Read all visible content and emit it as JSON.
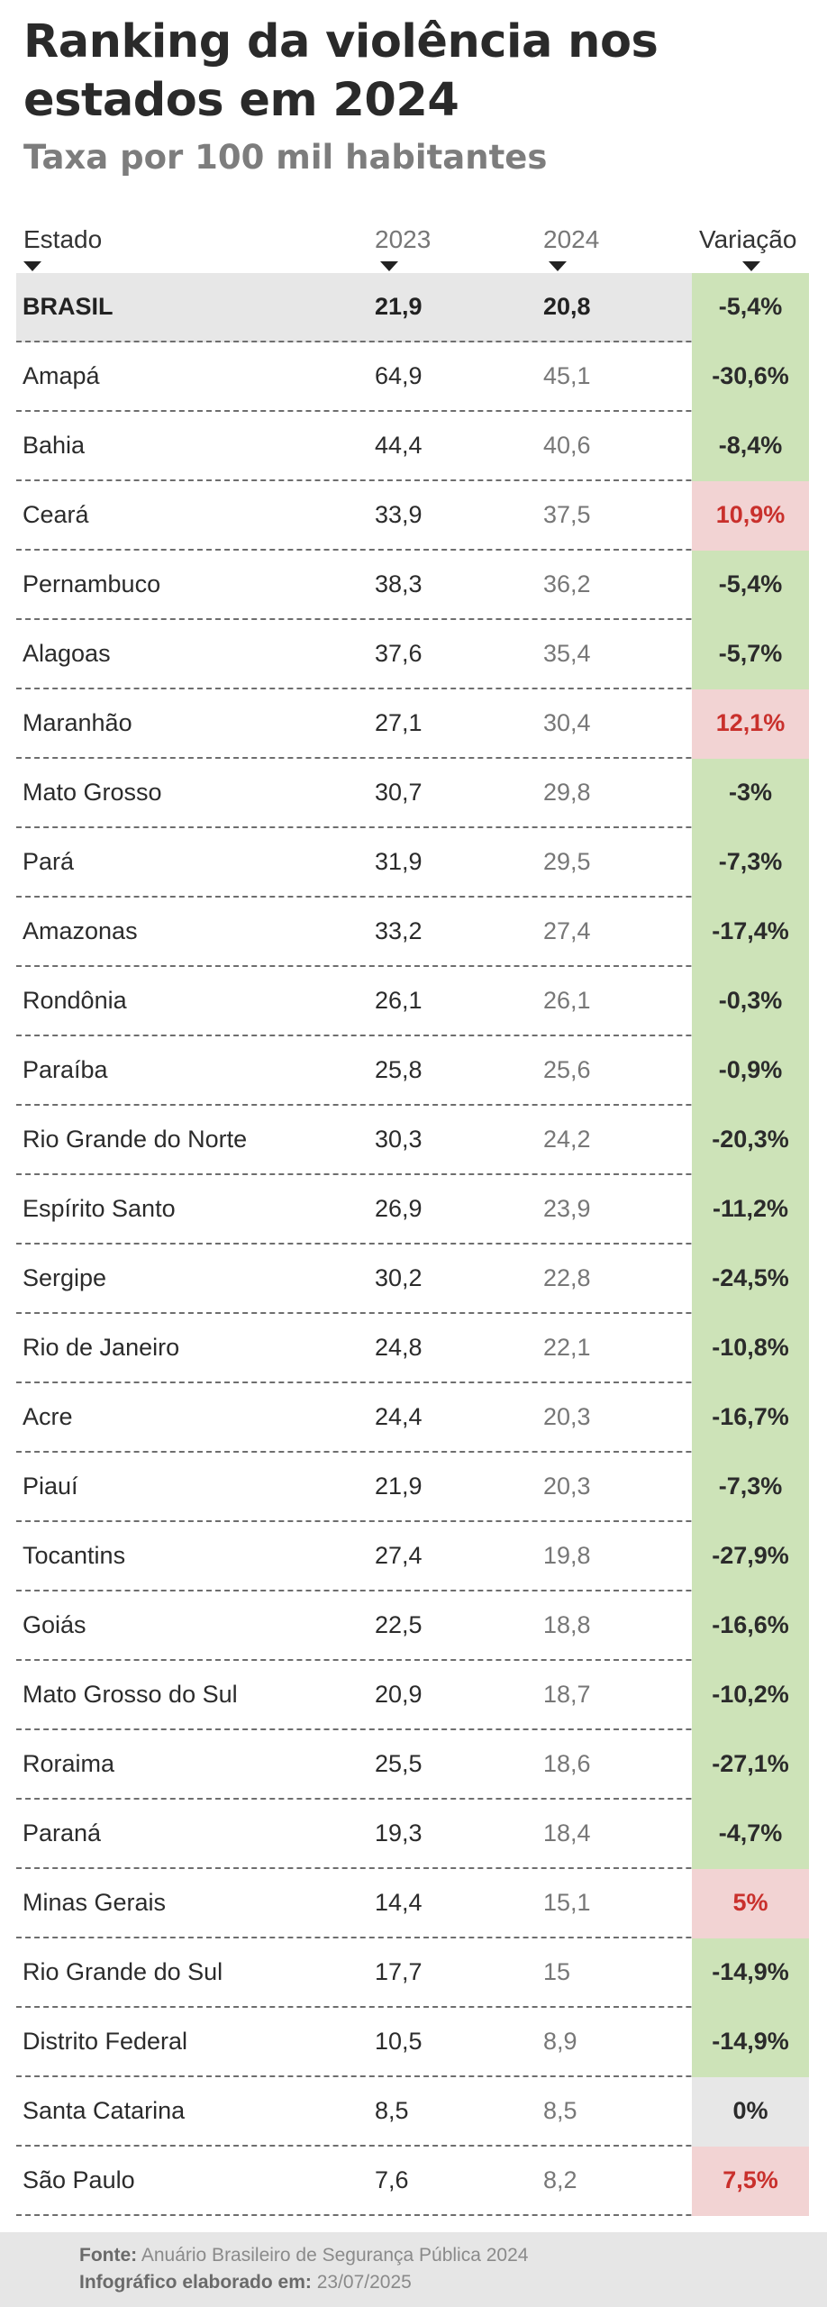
{
  "title": "Ranking da violência nos estados em 2024",
  "subtitle": "Taxa por 100 mil habitantes",
  "columns": [
    "Estado",
    "2023",
    "2024",
    "Variação"
  ],
  "chart_data": {
    "type": "table",
    "title": "Ranking da violência nos estados em 2024",
    "subtitle": "Taxa por 100 mil habitantes",
    "columns": [
      "Estado",
      "2023",
      "2024",
      "Variação"
    ],
    "rows": [
      {
        "estado": "BRASIL",
        "v2023": "21,9",
        "v2024": "20,8",
        "variacao": "-5,4%",
        "status": "neg",
        "highlight": true
      },
      {
        "estado": "Amapá",
        "v2023": "64,9",
        "v2024": "45,1",
        "variacao": "-30,6%",
        "status": "neg"
      },
      {
        "estado": "Bahia",
        "v2023": "44,4",
        "v2024": "40,6",
        "variacao": "-8,4%",
        "status": "neg"
      },
      {
        "estado": "Ceará",
        "v2023": "33,9",
        "v2024": "37,5",
        "variacao": "10,9%",
        "status": "pos"
      },
      {
        "estado": "Pernambuco",
        "v2023": "38,3",
        "v2024": "36,2",
        "variacao": "-5,4%",
        "status": "neg"
      },
      {
        "estado": "Alagoas",
        "v2023": "37,6",
        "v2024": "35,4",
        "variacao": "-5,7%",
        "status": "neg"
      },
      {
        "estado": "Maranhão",
        "v2023": "27,1",
        "v2024": "30,4",
        "variacao": "12,1%",
        "status": "pos"
      },
      {
        "estado": "Mato Grosso",
        "v2023": "30,7",
        "v2024": "29,8",
        "variacao": "-3%",
        "status": "neg"
      },
      {
        "estado": "Pará",
        "v2023": "31,9",
        "v2024": "29,5",
        "variacao": "-7,3%",
        "status": "neg"
      },
      {
        "estado": "Amazonas",
        "v2023": "33,2",
        "v2024": "27,4",
        "variacao": "-17,4%",
        "status": "neg"
      },
      {
        "estado": "Rondônia",
        "v2023": "26,1",
        "v2024": "26,1",
        "variacao": "-0,3%",
        "status": "neg"
      },
      {
        "estado": "Paraíba",
        "v2023": "25,8",
        "v2024": "25,6",
        "variacao": "-0,9%",
        "status": "neg"
      },
      {
        "estado": "Rio Grande do Norte",
        "v2023": "30,3",
        "v2024": "24,2",
        "variacao": "-20,3%",
        "status": "neg"
      },
      {
        "estado": "Espírito Santo",
        "v2023": "26,9",
        "v2024": "23,9",
        "variacao": "-11,2%",
        "status": "neg"
      },
      {
        "estado": "Sergipe",
        "v2023": "30,2",
        "v2024": "22,8",
        "variacao": "-24,5%",
        "status": "neg"
      },
      {
        "estado": "Rio de Janeiro",
        "v2023": "24,8",
        "v2024": "22,1",
        "variacao": "-10,8%",
        "status": "neg"
      },
      {
        "estado": "Acre",
        "v2023": "24,4",
        "v2024": "20,3",
        "variacao": "-16,7%",
        "status": "neg"
      },
      {
        "estado": "Piauí",
        "v2023": "21,9",
        "v2024": "20,3",
        "variacao": "-7,3%",
        "status": "neg"
      },
      {
        "estado": "Tocantins",
        "v2023": "27,4",
        "v2024": "19,8",
        "variacao": "-27,9%",
        "status": "neg"
      },
      {
        "estado": "Goiás",
        "v2023": "22,5",
        "v2024": "18,8",
        "variacao": "-16,6%",
        "status": "neg"
      },
      {
        "estado": "Mato Grosso do Sul",
        "v2023": "20,9",
        "v2024": "18,7",
        "variacao": "-10,2%",
        "status": "neg"
      },
      {
        "estado": "Roraima",
        "v2023": "25,5",
        "v2024": "18,6",
        "variacao": "-27,1%",
        "status": "neg"
      },
      {
        "estado": "Paraná",
        "v2023": "19,3",
        "v2024": "18,4",
        "variacao": "-4,7%",
        "status": "neg"
      },
      {
        "estado": "Minas Gerais",
        "v2023": "14,4",
        "v2024": "15,1",
        "variacao": "5%",
        "status": "pos"
      },
      {
        "estado": "Rio Grande do Sul",
        "v2023": "17,7",
        "v2024": "15",
        "variacao": "-14,9%",
        "status": "neg"
      },
      {
        "estado": "Distrito Federal",
        "v2023": "10,5",
        "v2024": "8,9",
        "variacao": "-14,9%",
        "status": "neg"
      },
      {
        "estado": "Santa Catarina",
        "v2023": "8,5",
        "v2024": "8,5",
        "variacao": "0%",
        "status": "zero"
      },
      {
        "estado": "São Paulo",
        "v2023": "7,6",
        "v2024": "8,2",
        "variacao": "7,5%",
        "status": "pos"
      }
    ]
  },
  "footer": {
    "source_label": "Fonte:",
    "source_text": "Anuário Brasileiro de Segurança Pública 2024",
    "credit_label": "Infográfico elaborado em:",
    "credit_text": "23/07/2025"
  },
  "colors": {
    "negative_bg": "#cde3b8",
    "positive_bg": "#f2d3d3",
    "positive_text": "#c9302c",
    "neutral_bg": "#e7e7e7"
  }
}
